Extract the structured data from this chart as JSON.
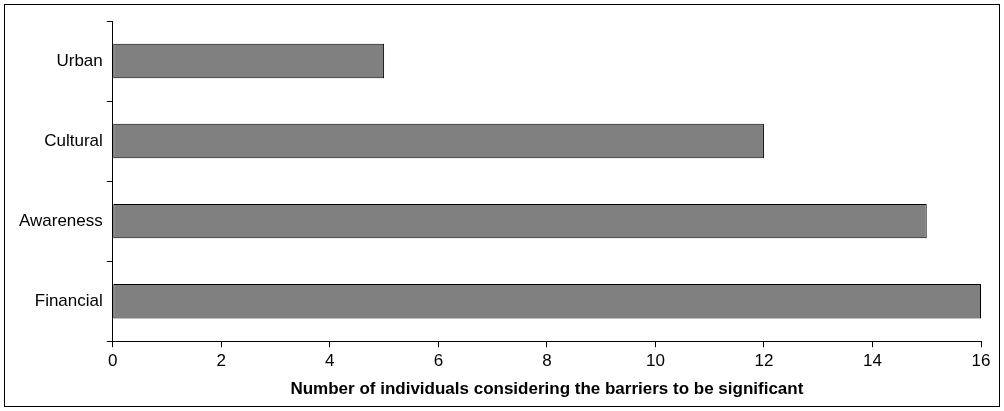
{
  "chart_data": {
    "type": "bar",
    "orientation": "horizontal",
    "xlabel": "Number of individuals considering the barriers to be significant",
    "categories": [
      "Urban",
      "Cultural",
      "Awareness",
      "Financial"
    ],
    "series": [
      {
        "color": "#808080",
        "values": [
          5,
          12,
          15,
          16
        ]
      }
    ],
    "xlim": [
      0,
      16
    ],
    "xticks": [
      0,
      2,
      4,
      6,
      8,
      10,
      12,
      14,
      16
    ],
    "grid": false,
    "legend": false
  }
}
